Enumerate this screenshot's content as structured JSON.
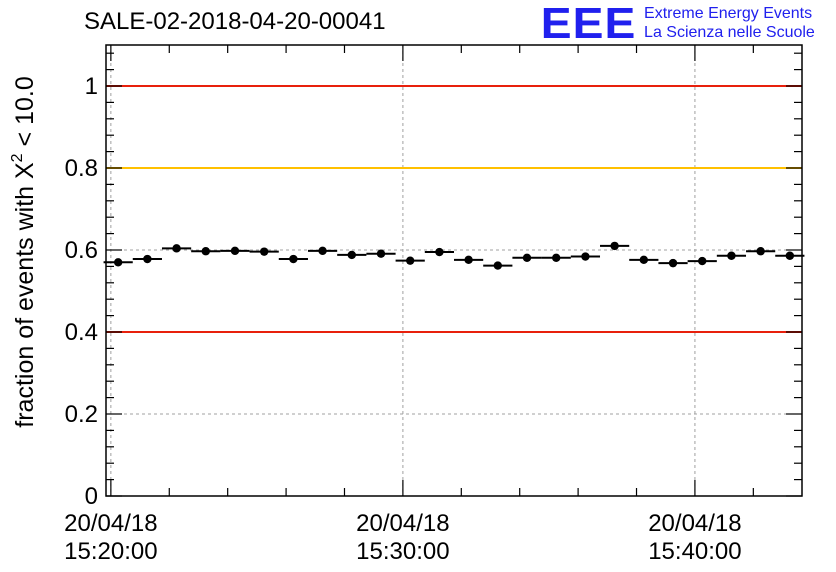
{
  "header": {
    "run_id": "SALE-02-2018-04-20-00041",
    "logo": {
      "mark": "EEE",
      "line1": "Extreme Energy Events",
      "line2": "La Scienza nelle Scuole"
    }
  },
  "colors": {
    "limit_red": "#e8200c",
    "limit_yellow": "#ffc000",
    "points": "#000000",
    "logo_blue": "#2020ee"
  },
  "chart_data": {
    "type": "scatter",
    "title": "SALE-02-2018-04-20-00041",
    "ylabel_parts": {
      "prefix": "fraction of events with ",
      "chi": "X",
      "sup": "2",
      "suffix": " < 10.0"
    },
    "xlabel": "",
    "ylim": [
      0,
      1.1
    ],
    "xlim": [
      "2018-04-20 15:19:50",
      "2018-04-20 15:43:40"
    ],
    "yticks": [
      "0",
      "0.2",
      "0.4",
      "0.6",
      "0.8",
      "1"
    ],
    "xticks": [
      {
        "date": "20/04/18",
        "time": "15:20:00"
      },
      {
        "date": "20/04/18",
        "time": "15:30:00"
      },
      {
        "date": "20/04/18",
        "time": "15:40:00"
      }
    ],
    "grid": true,
    "reference_lines": [
      {
        "y": 1.0,
        "color": "#e8200c"
      },
      {
        "y": 0.8,
        "color": "#ffc000"
      },
      {
        "y": 0.4,
        "color": "#e8200c"
      }
    ],
    "series": [
      {
        "x": [
          "15:20:15",
          "15:21:15",
          "15:22:15",
          "15:23:15",
          "15:24:15",
          "15:25:15",
          "15:26:15",
          "15:27:15",
          "15:28:15",
          "15:29:15",
          "15:30:15",
          "15:31:15",
          "15:32:15",
          "15:33:15",
          "15:34:15",
          "15:35:15",
          "15:36:15",
          "15:37:15",
          "15:38:15",
          "15:39:15",
          "15:40:15",
          "15:41:15",
          "15:42:15",
          "15:43:15"
        ],
        "y": [
          0.57,
          0.578,
          0.604,
          0.597,
          0.598,
          0.596,
          0.578,
          0.598,
          0.588,
          0.591,
          0.574,
          0.595,
          0.576,
          0.562,
          0.581,
          0.581,
          0.584,
          0.61,
          0.576,
          0.568,
          0.573,
          0.586,
          0.597,
          0.586
        ],
        "xerr_seconds": 30,
        "yerr": 0.005
      }
    ]
  }
}
